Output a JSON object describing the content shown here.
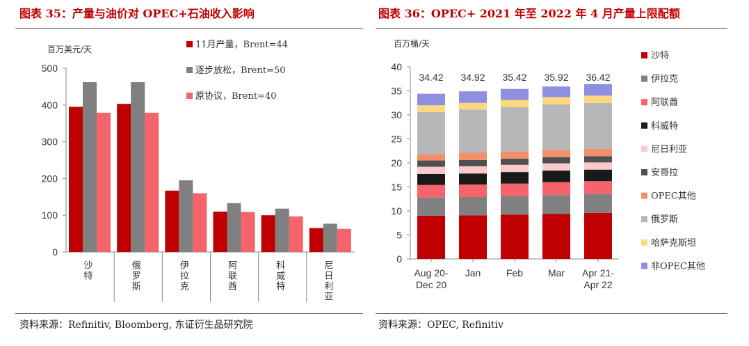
{
  "left": {
    "title": "图表 35：产量与油价对 OPEC+石油收入影响",
    "source": "资料来源：Refinitiv, Bloomberg, 东证衍生品研究院",
    "chart_data": {
      "type": "bar",
      "ylabel": "百万美元/天",
      "ylim": [
        0,
        500
      ],
      "yticks": [
        0,
        100,
        200,
        300,
        400,
        500
      ],
      "categories": [
        "沙特",
        "俄罗斯",
        "伊拉克",
        "阿联酋",
        "科威特",
        "尼日利亚"
      ],
      "series": [
        {
          "name": "11月产量，Brent=44",
          "color": "#c00000",
          "values": [
            395,
            403,
            167,
            110,
            100,
            65
          ]
        },
        {
          "name": "逐步放松，Brent=50",
          "color": "#808080",
          "values": [
            462,
            462,
            195,
            133,
            118,
            77
          ]
        },
        {
          "name": "原协议，Brent=40",
          "color": "#f4646a",
          "values": [
            379,
            379,
            160,
            109,
            97,
            63
          ]
        }
      ],
      "legend_position": "top-right",
      "grid": false
    }
  },
  "right": {
    "title": "图表 36：OPEC+ 2021 年至 2022 年 4 月产量上限配额",
    "source": "资料来源：OPEC, Refinitiv",
    "chart_data": {
      "type": "bar",
      "stacked": true,
      "ylabel": "百万桶/天",
      "ylim": [
        0,
        40
      ],
      "yticks": [
        0,
        5,
        10,
        15,
        20,
        25,
        30,
        35,
        40
      ],
      "categories": [
        "Aug 20-\nDec 20",
        "Jan",
        "Feb",
        "Mar",
        "Apr 21-\nApr 22"
      ],
      "totals": [
        "34.42",
        "34.92",
        "35.42",
        "35.92",
        "36.42"
      ],
      "series": [
        {
          "name": "沙特",
          "color": "#c00000",
          "values": [
            9.0,
            9.1,
            9.2,
            9.4,
            9.6
          ]
        },
        {
          "name": "伊拉克",
          "color": "#808080",
          "values": [
            3.8,
            3.8,
            3.9,
            3.9,
            3.9
          ]
        },
        {
          "name": "阿联酋",
          "color": "#f4646a",
          "values": [
            2.6,
            2.6,
            2.6,
            2.7,
            2.7
          ]
        },
        {
          "name": "科威特",
          "color": "#1a1a1a",
          "values": [
            2.3,
            2.3,
            2.4,
            2.4,
            2.4
          ]
        },
        {
          "name": "尼日利亚",
          "color": "#f9c9cc",
          "values": [
            1.5,
            1.5,
            1.5,
            1.5,
            1.5
          ]
        },
        {
          "name": "安哥拉",
          "color": "#505050",
          "values": [
            1.3,
            1.3,
            1.3,
            1.3,
            1.3
          ]
        },
        {
          "name": "OPEC其他",
          "color": "#f3906a",
          "values": [
            1.3,
            1.5,
            1.5,
            1.5,
            1.5
          ]
        },
        {
          "name": "俄罗斯",
          "color": "#b7b7b7",
          "values": [
            8.8,
            9.0,
            9.2,
            9.5,
            9.6
          ]
        },
        {
          "name": "哈萨克斯坦",
          "color": "#ffd780",
          "values": [
            1.4,
            1.4,
            1.5,
            1.5,
            1.5
          ]
        },
        {
          "name": "非OPEC其他",
          "color": "#8f8fdf",
          "values": [
            2.4,
            2.4,
            2.3,
            2.2,
            2.4
          ]
        }
      ],
      "legend_position": "right",
      "grid": false
    }
  }
}
